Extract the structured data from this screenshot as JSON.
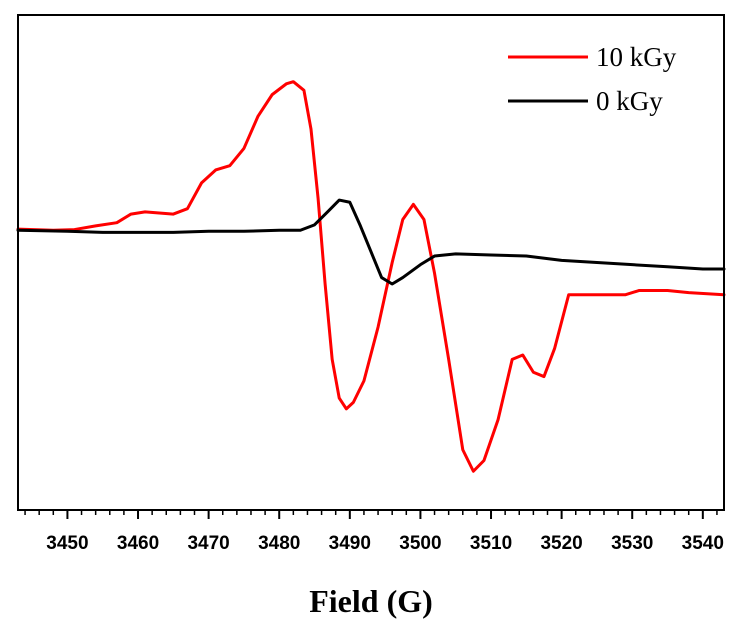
{
  "chart_data": {
    "type": "line",
    "title": "",
    "xlabel": "Field (G)",
    "ylabel": "",
    "xlim": [
      3443,
      3543
    ],
    "ylim": [
      -1.3,
      1.0
    ],
    "x_ticks": [
      3450,
      3460,
      3470,
      3480,
      3490,
      3500,
      3510,
      3520,
      3530,
      3540
    ],
    "x_minor_step": 2,
    "y_ticks_shown": false,
    "grid": false,
    "legend_position": "top-right",
    "series": [
      {
        "name": "10 kGy",
        "color": "#ff0000",
        "points": [
          [
            3443,
            0.005
          ],
          [
            3448,
            0.0
          ],
          [
            3451,
            0.003
          ],
          [
            3454,
            0.02
          ],
          [
            3457,
            0.035
          ],
          [
            3459,
            0.075
          ],
          [
            3461,
            0.085
          ],
          [
            3463,
            0.08
          ],
          [
            3465,
            0.075
          ],
          [
            3467,
            0.1
          ],
          [
            3469,
            0.22
          ],
          [
            3471,
            0.28
          ],
          [
            3473,
            0.3
          ],
          [
            3475,
            0.38
          ],
          [
            3477,
            0.53
          ],
          [
            3479,
            0.63
          ],
          [
            3481,
            0.68
          ],
          [
            3482,
            0.69
          ],
          [
            3483.5,
            0.65
          ],
          [
            3484.5,
            0.47
          ],
          [
            3485.5,
            0.15
          ],
          [
            3486.5,
            -0.25
          ],
          [
            3487.5,
            -0.6
          ],
          [
            3488.5,
            -0.78
          ],
          [
            3489.5,
            -0.83
          ],
          [
            3490.5,
            -0.8
          ],
          [
            3492,
            -0.7
          ],
          [
            3494,
            -0.45
          ],
          [
            3496,
            -0.15
          ],
          [
            3497.5,
            0.05
          ],
          [
            3499,
            0.12
          ],
          [
            3500.5,
            0.05
          ],
          [
            3502,
            -0.2
          ],
          [
            3504,
            -0.6
          ],
          [
            3506,
            -1.02
          ],
          [
            3507.5,
            -1.12
          ],
          [
            3509,
            -1.07
          ],
          [
            3511,
            -0.88
          ],
          [
            3513,
            -0.6
          ],
          [
            3514.5,
            -0.58
          ],
          [
            3516,
            -0.66
          ],
          [
            3517.5,
            -0.68
          ],
          [
            3519,
            -0.55
          ],
          [
            3521,
            -0.3
          ],
          [
            3523,
            -0.3
          ],
          [
            3526,
            -0.3
          ],
          [
            3529,
            -0.3
          ],
          [
            3531,
            -0.28
          ],
          [
            3535,
            -0.28
          ],
          [
            3538,
            -0.29
          ],
          [
            3543,
            -0.3
          ]
        ]
      },
      {
        "name": "0 kGy",
        "color": "#000000",
        "points": [
          [
            3443,
            0.0
          ],
          [
            3450,
            -0.005
          ],
          [
            3455,
            -0.01
          ],
          [
            3460,
            -0.01
          ],
          [
            3465,
            -0.01
          ],
          [
            3470,
            -0.005
          ],
          [
            3475,
            -0.005
          ],
          [
            3480,
            0.0
          ],
          [
            3483,
            0.0
          ],
          [
            3485,
            0.025
          ],
          [
            3487,
            0.09
          ],
          [
            3488.5,
            0.14
          ],
          [
            3490,
            0.13
          ],
          [
            3491.5,
            0.02
          ],
          [
            3493,
            -0.1
          ],
          [
            3494.5,
            -0.22
          ],
          [
            3496,
            -0.25
          ],
          [
            3497.5,
            -0.22
          ],
          [
            3500,
            -0.16
          ],
          [
            3502,
            -0.12
          ],
          [
            3505,
            -0.11
          ],
          [
            3510,
            -0.115
          ],
          [
            3515,
            -0.12
          ],
          [
            3520,
            -0.14
          ],
          [
            3525,
            -0.15
          ],
          [
            3530,
            -0.16
          ],
          [
            3535,
            -0.17
          ],
          [
            3540,
            -0.18
          ],
          [
            3543,
            -0.18
          ]
        ]
      }
    ]
  }
}
